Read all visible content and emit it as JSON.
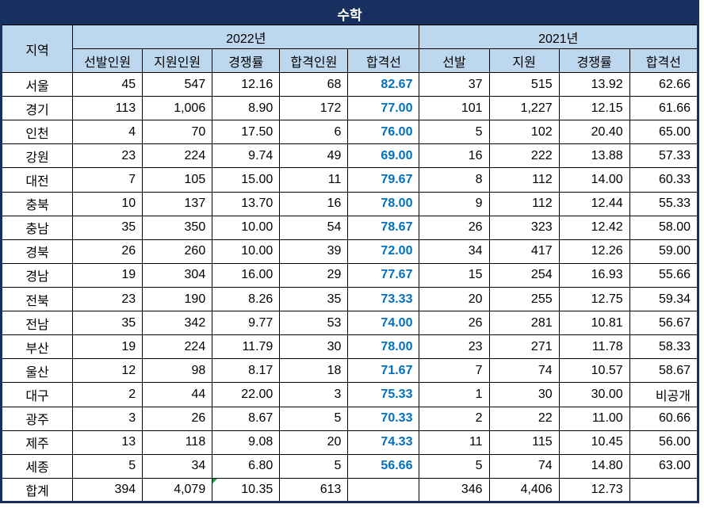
{
  "title": "수학",
  "colors": {
    "navy": "#18305F",
    "header_blue": "#BDD7EE",
    "cutline_blue": "#0070C0",
    "error_marker_green": "#1E9E3E"
  },
  "header": {
    "region": "지역",
    "groups": [
      {
        "label": "2022년",
        "cols": [
          "선발인원",
          "지원인원",
          "경쟁률",
          "합격인원",
          "합격선"
        ]
      },
      {
        "label": "2021년",
        "cols": [
          "선발",
          "지원",
          "경쟁률",
          "합격선"
        ]
      }
    ]
  },
  "rows": [
    [
      "서울",
      "45",
      "547",
      "12.16",
      "68",
      "82.67",
      "37",
      "515",
      "13.92",
      "62.66"
    ],
    [
      "경기",
      "113",
      "1,006",
      "8.90",
      "172",
      "77.00",
      "101",
      "1,227",
      "12.15",
      "61.66"
    ],
    [
      "인천",
      "4",
      "70",
      "17.50",
      "6",
      "76.00",
      "5",
      "102",
      "20.40",
      "65.00"
    ],
    [
      "강원",
      "23",
      "224",
      "9.74",
      "49",
      "69.00",
      "16",
      "222",
      "13.88",
      "57.33"
    ],
    [
      "대전",
      "7",
      "105",
      "15.00",
      "11",
      "79.67",
      "8",
      "112",
      "14.00",
      "60.33"
    ],
    [
      "충북",
      "10",
      "137",
      "13.70",
      "16",
      "78.00",
      "9",
      "112",
      "12.44",
      "55.33"
    ],
    [
      "충남",
      "35",
      "350",
      "10.00",
      "54",
      "78.67",
      "26",
      "323",
      "12.42",
      "58.00"
    ],
    [
      "경북",
      "26",
      "260",
      "10.00",
      "39",
      "72.00",
      "34",
      "417",
      "12.26",
      "59.00"
    ],
    [
      "경남",
      "19",
      "304",
      "16.00",
      "29",
      "77.67",
      "15",
      "254",
      "16.93",
      "55.66"
    ],
    [
      "전북",
      "23",
      "190",
      "8.26",
      "35",
      "73.33",
      "20",
      "255",
      "12.75",
      "59.34"
    ],
    [
      "전남",
      "35",
      "342",
      "9.77",
      "53",
      "74.00",
      "26",
      "281",
      "10.81",
      "56.67"
    ],
    [
      "부산",
      "19",
      "224",
      "11.79",
      "30",
      "78.00",
      "23",
      "271",
      "11.78",
      "58.33"
    ],
    [
      "울산",
      "12",
      "98",
      "8.17",
      "18",
      "71.67",
      "7",
      "74",
      "10.57",
      "58.67"
    ],
    [
      "대구",
      "2",
      "44",
      "22.00",
      "3",
      "75.33",
      "1",
      "30",
      "30.00",
      "비공개"
    ],
    [
      "광주",
      "3",
      "26",
      "8.67",
      "5",
      "70.33",
      "2",
      "22",
      "11.00",
      "60.66"
    ],
    [
      "제주",
      "13",
      "118",
      "9.08",
      "20",
      "74.33",
      "11",
      "115",
      "10.45",
      "56.00"
    ],
    [
      "세종",
      "5",
      "34",
      "6.80",
      "5",
      "56.66",
      "5",
      "74",
      "14.80",
      "63.00"
    ],
    [
      "합계",
      "394",
      "4,079",
      "10.35",
      "613",
      "",
      "346",
      "4,406",
      "12.73",
      ""
    ]
  ],
  "error_marker": {
    "row": 17,
    "col": 3
  }
}
